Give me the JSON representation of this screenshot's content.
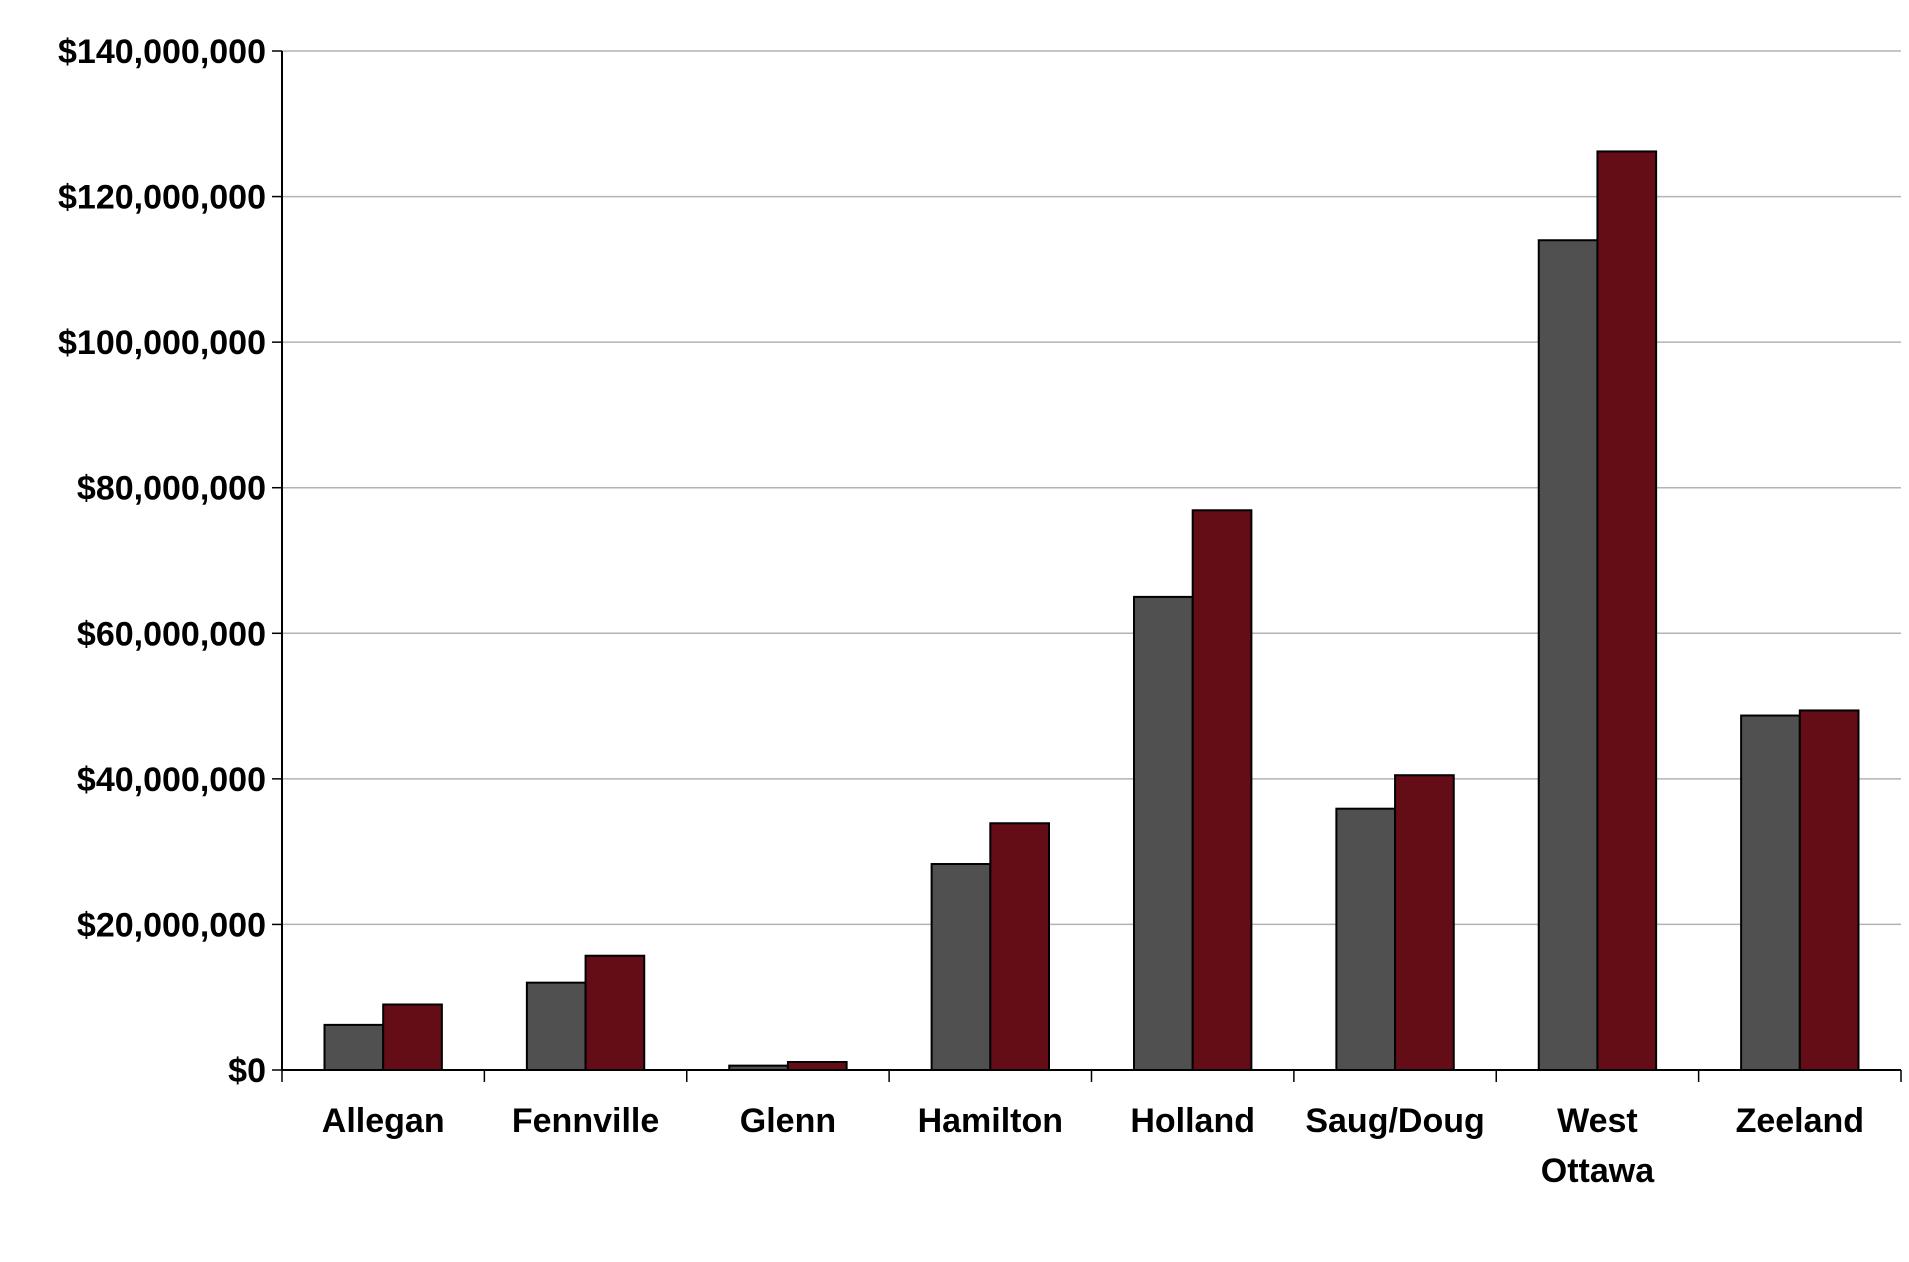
{
  "chart_data": {
    "type": "bar",
    "title": "",
    "xlabel": "",
    "ylabel": "",
    "categories": [
      "Allegan",
      "Fennville",
      "Glenn",
      "Hamilton",
      "Holland",
      "Saug/Doug",
      "West Ottawa",
      "Zeeland"
    ],
    "category_lines": [
      [
        "Allegan"
      ],
      [
        "Fennville"
      ],
      [
        "Glenn"
      ],
      [
        "Hamilton"
      ],
      [
        "Holland"
      ],
      [
        "Saug/Doug"
      ],
      [
        "West",
        "Ottawa"
      ],
      [
        "Zeeland"
      ]
    ],
    "series": [
      {
        "values": [
          6200000,
          12000000,
          600000,
          28300000,
          65000000,
          35900000,
          114000000,
          48700000
        ],
        "color": "#505050"
      },
      {
        "values": [
          9000000,
          15700000,
          1100000,
          33900000,
          76900000,
          40500000,
          126200000,
          49400000
        ],
        "color": "#640d16"
      }
    ],
    "ylim": [
      0,
      140000000
    ],
    "yticks": [
      0,
      20000000,
      40000000,
      60000000,
      80000000,
      100000000,
      120000000,
      140000000
    ],
    "ytick_labels": [
      "$0",
      "$20,000,000",
      "$40,000,000",
      "$60,000,000",
      "$80,000,000",
      "$100,000,000",
      "$120,000,000",
      "$140,000,000"
    ],
    "grid": true,
    "legend": "none"
  }
}
